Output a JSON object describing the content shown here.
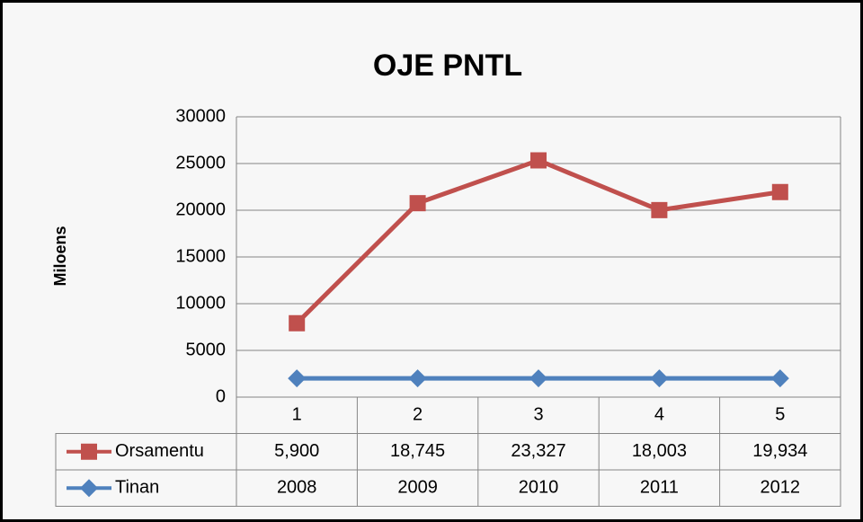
{
  "chart_data": {
    "type": "line",
    "stacked": true,
    "title": "OJE PNTL",
    "y_label": "Miloens",
    "categories": [
      "1",
      "2",
      "3",
      "4",
      "5"
    ],
    "series": [
      {
        "name": "Orsamentu",
        "color": "#c0504d",
        "marker": "square",
        "values": [
          5900,
          18745,
          23327,
          18003,
          19934
        ],
        "value_labels": [
          "5,900",
          "18,745",
          "23,327",
          "18,003",
          "19,934"
        ]
      },
      {
        "name": "Tinan",
        "color": "#4f81bd",
        "marker": "diamond",
        "values": [
          2008,
          2009,
          2010,
          2011,
          2012
        ]
      }
    ],
    "ylim": [
      0,
      30000
    ],
    "yticks": [
      0,
      5000,
      10000,
      15000,
      20000,
      25000,
      30000
    ],
    "grid": true,
    "legend": "data-table"
  }
}
